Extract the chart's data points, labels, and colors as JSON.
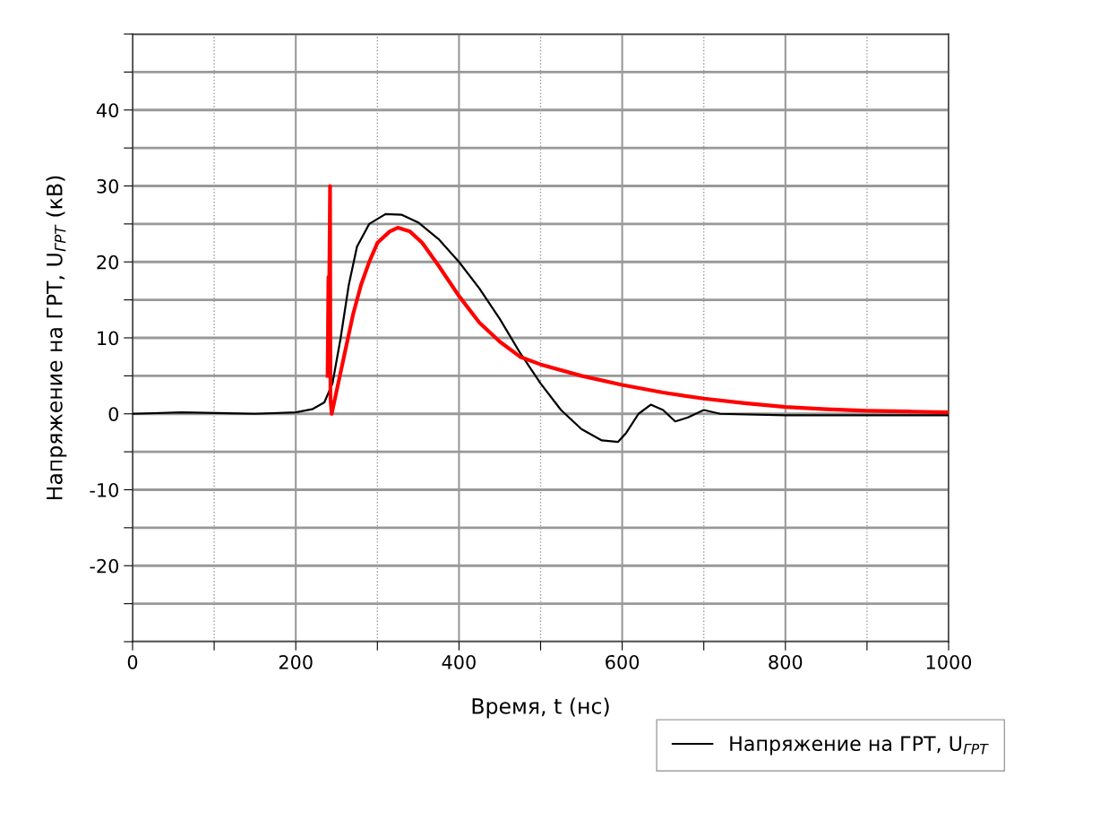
{
  "chart_data": {
    "type": "line",
    "xlabel": "Время, t (нс)",
    "ylabel": "Напряжение на ГРТ, U$_{ГРТ}$ (кВ)",
    "xlim": [
      0,
      1000
    ],
    "ylim": [
      -30,
      50
    ],
    "xticks": [
      0,
      {
        "value": 100,
        "label": null
      },
      200,
      {
        "value": 300,
        "label": null
      },
      400,
      {
        "value": 500,
        "label": null
      },
      600,
      {
        "value": 700,
        "label": null
      },
      800,
      {
        "value": 900,
        "label": null
      },
      1000
    ],
    "yticks": [
      {
        "value": -30,
        "label": null
      },
      {
        "value": -25,
        "label": null
      },
      -20,
      {
        "value": -15,
        "label": null
      },
      -10,
      {
        "value": -5,
        "label": null
      },
      0,
      {
        "value": 5,
        "label": null
      },
      10,
      {
        "value": 15,
        "label": null
      },
      20,
      {
        "value": 25,
        "label": null
      },
      30,
      {
        "value": 35,
        "label": null
      },
      40,
      {
        "value": 45,
        "label": null
      },
      {
        "value": 50,
        "label": null
      }
    ],
    "grid": true,
    "legend": "bottom right",
    "series": [
      {
        "name": "Напряжение на ГРТ, U$_{ГРТ}$",
        "color": "#000000",
        "x": [
          0,
          60,
          150,
          200,
          220,
          235,
          245,
          255,
          265,
          275,
          290,
          310,
          330,
          350,
          375,
          400,
          425,
          450,
          475,
          500,
          525,
          550,
          575,
          595,
          605,
          620,
          635,
          650,
          665,
          680,
          700,
          720,
          800,
          1000
        ],
        "values": [
          0,
          0.2,
          0,
          0.2,
          0.6,
          1.5,
          4,
          10,
          17,
          22,
          25,
          26.3,
          26.2,
          25.2,
          23,
          20,
          16.5,
          12.5,
          8,
          4,
          0.5,
          -2,
          -3.5,
          -3.7,
          -2.5,
          0,
          1.2,
          0.5,
          -1,
          -0.5,
          0.5,
          0,
          -0.2,
          -0.2
        ]
      },
      {
        "color": "#ff0000",
        "x": [
          239,
          240,
          240.5,
          241,
          242,
          242.5,
          244,
          250,
          260,
          270,
          280,
          290,
          300,
          315,
          325,
          340,
          355,
          375,
          400,
          425,
          450,
          475,
          500,
          550,
          600,
          650,
          700,
          750,
          800,
          850,
          900,
          950,
          1000
        ],
        "values": [
          5,
          18,
          5,
          17,
          30,
          2,
          0,
          3,
          8,
          13,
          17,
          20,
          22.5,
          24,
          24.5,
          24,
          22.5,
          19.5,
          15.5,
          12,
          9.5,
          7.5,
          6.5,
          5,
          3.8,
          2.8,
          2,
          1.4,
          0.9,
          0.6,
          0.4,
          0.3,
          0.2
        ]
      }
    ]
  }
}
